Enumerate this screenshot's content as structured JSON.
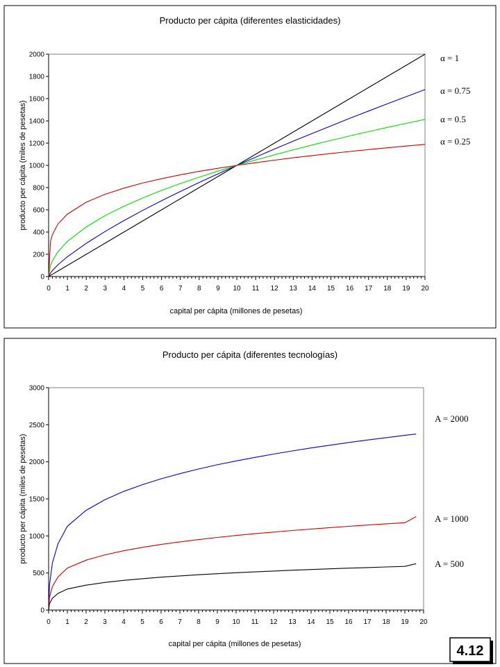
{
  "chart_data": [
    {
      "type": "line",
      "title": "Producto per cápita (diferentes elasticidades)",
      "xlabel": "capital per cápita (millones de pesetas)",
      "ylabel": "producto per cápita (miles de pesetas)",
      "xlim": [
        0,
        20
      ],
      "ylim": [
        0,
        2000
      ],
      "x_ticks": [
        "0",
        "1",
        "2",
        "3",
        "4",
        "5",
        "6",
        "7",
        "8",
        "9",
        "10",
        "11",
        "12",
        "13",
        "14",
        "15",
        "16",
        "17",
        "18",
        "19",
        "20"
      ],
      "y_ticks": [
        "0",
        "200",
        "400",
        "600",
        "800",
        "1000",
        "1200",
        "1400",
        "1600",
        "1800",
        "2000"
      ],
      "grid": false,
      "legend_placement": "right",
      "x": [
        0,
        0.1,
        0.2,
        0.5,
        1,
        2,
        3,
        4,
        5,
        6,
        7,
        8,
        9,
        10,
        11,
        12,
        13,
        14,
        15,
        16,
        17,
        18,
        19,
        20
      ],
      "series": [
        {
          "name": "α = 1",
          "color": "#000000",
          "values": [
            0,
            10,
            20,
            50,
            100,
            200,
            300,
            400,
            500,
            600,
            700,
            800,
            900,
            1000,
            1100,
            1200,
            1300,
            1400,
            1500,
            1600,
            1700,
            1800,
            1900,
            2000
          ]
        },
        {
          "name": "α = 0.75",
          "color": "#0000cc",
          "values": [
            0,
            32,
            53,
            106,
            178,
            299,
            405,
            503,
            595,
            682,
            765,
            846,
            924,
            1000,
            1074,
            1147,
            1218,
            1287,
            1355,
            1423,
            1489,
            1554,
            1618,
            1682
          ]
        },
        {
          "name": "α = 0.5",
          "color": "#00dd00",
          "values": [
            0,
            100,
            141,
            224,
            316,
            447,
            548,
            632,
            707,
            775,
            837,
            894,
            949,
            1000,
            1049,
            1095,
            1140,
            1183,
            1225,
            1265,
            1304,
            1342,
            1378,
            1414
          ]
        },
        {
          "name": "α = 0.25",
          "color": "#cc0000",
          "values": [
            0,
            316,
            376,
            473,
            562,
            669,
            740,
            795,
            841,
            880,
            915,
            946,
            974,
            1000,
            1024,
            1047,
            1068,
            1088,
            1107,
            1125,
            1142,
            1158,
            1174,
            1189
          ]
        }
      ]
    },
    {
      "type": "line",
      "title": "Producto per cápita (diferentes tecnologías)",
      "xlabel": "capital per cápita (millones de pesetas)",
      "ylabel": "producto per cápita (miles de pesetas)",
      "xlim": [
        0,
        20
      ],
      "ylim": [
        0,
        3000
      ],
      "x_ticks": [
        "0",
        "1",
        "2",
        "3",
        "4",
        "5",
        "6",
        "7",
        "8",
        "9",
        "10",
        "11",
        "12",
        "13",
        "14",
        "15",
        "16",
        "17",
        "18",
        "19",
        "20"
      ],
      "y_ticks": [
        "0",
        "500",
        "1000",
        "1500",
        "2000",
        "2500",
        "3000"
      ],
      "grid": false,
      "legend_placement": "right",
      "x": [
        0,
        0.05,
        0.2,
        0.5,
        1,
        2,
        3,
        4,
        5,
        6,
        7,
        8,
        9,
        10,
        11,
        12,
        13,
        14,
        15,
        16,
        17,
        18,
        19,
        19.6
      ],
      "series": [
        {
          "name": "A = 2000",
          "color": "#0000cc",
          "values": [
            0,
            339,
            633,
            894,
            1131,
            1345,
            1488,
            1600,
            1691,
            1771,
            1840,
            1903,
            1960,
            2012,
            2060,
            2105,
            2147,
            2187,
            2224,
            2260,
            2294,
            2326,
            2357,
            2375
          ]
        },
        {
          "name": "A = 1000",
          "color": "#cc0000",
          "values": [
            0,
            170,
            316,
            447,
            566,
            673,
            744,
            800,
            846,
            885,
            920,
            951,
            980,
            1006,
            1030,
            1052,
            1073,
            1093,
            1112,
            1130,
            1147,
            1163,
            1178,
            1260
          ]
        },
        {
          "name": "A = 500",
          "color": "#000000",
          "values": [
            0,
            85,
            158,
            224,
            283,
            336,
            372,
            400,
            423,
            443,
            460,
            476,
            490,
            503,
            515,
            526,
            537,
            547,
            556,
            565,
            573,
            581,
            589,
            625
          ]
        }
      ]
    }
  ],
  "badge": "4.12"
}
